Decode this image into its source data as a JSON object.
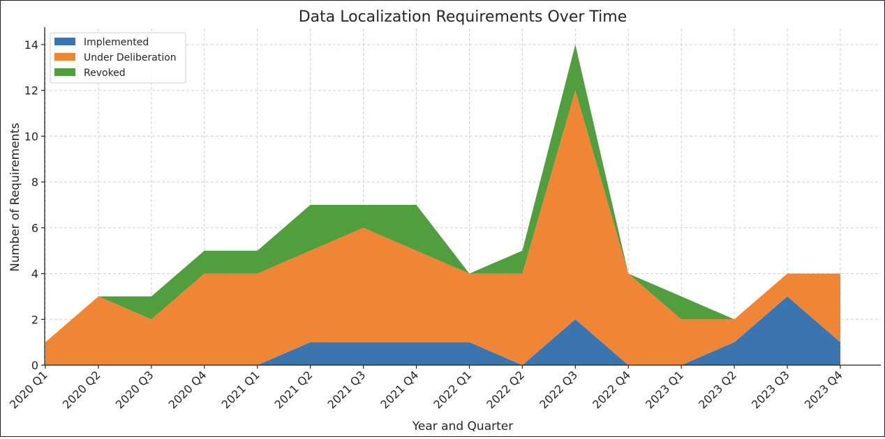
{
  "chart_data": {
    "type": "area",
    "stacked": true,
    "title": "Data Localization Requirements Over Time",
    "xlabel": "Year and Quarter",
    "ylabel": "Number of Requirements",
    "categories": [
      "2020 Q1",
      "2020 Q2",
      "2020 Q3",
      "2020 Q4",
      "2021 Q1",
      "2021 Q2",
      "2021 Q3",
      "2021 Q4",
      "2022 Q1",
      "2022 Q2",
      "2022 Q3",
      "2022 Q4",
      "2023 Q1",
      "2023 Q2",
      "2023 Q3",
      "2023 Q4"
    ],
    "yticks": [
      0,
      2,
      4,
      6,
      8,
      10,
      12,
      14
    ],
    "ylim": [
      0,
      14.7
    ],
    "grid": true,
    "legend_position": "top-left",
    "series": [
      {
        "name": "Implemented",
        "color": "#3b75af",
        "values": [
          0,
          0,
          0,
          0,
          0,
          1,
          1,
          1,
          1,
          0,
          2,
          0,
          0,
          1,
          3,
          1
        ]
      },
      {
        "name": "Under Deliberation",
        "color": "#ef8636",
        "values": [
          1,
          3,
          2,
          4,
          4,
          4,
          5,
          4,
          3,
          4,
          10,
          4,
          2,
          1,
          1,
          3
        ]
      },
      {
        "name": "Revoked",
        "color": "#519e3e",
        "values": [
          0,
          0,
          1,
          1,
          1,
          2,
          1,
          2,
          0,
          1,
          2,
          0,
          1,
          0,
          0,
          0
        ]
      }
    ]
  }
}
